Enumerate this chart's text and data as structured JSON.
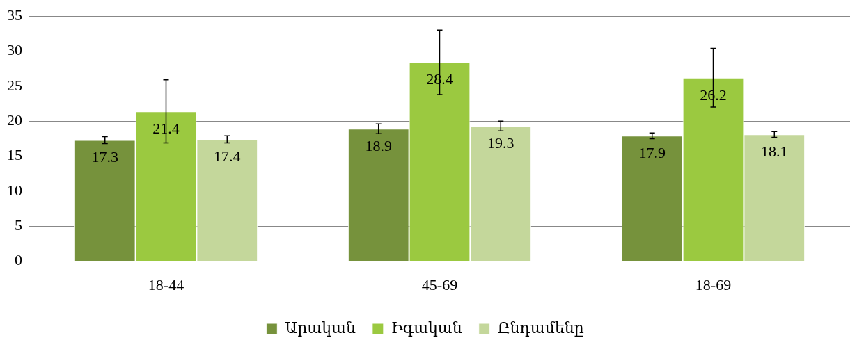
{
  "chart_data": {
    "type": "bar",
    "categories": [
      "18-44",
      "45-69",
      "18-69"
    ],
    "series": [
      {
        "name": "Արական",
        "color": "#76923c",
        "values": [
          17.3,
          18.9,
          17.9
        ],
        "errors": [
          0.5,
          0.7,
          0.4
        ]
      },
      {
        "name": "Իգական",
        "color": "#9bc940",
        "values": [
          21.4,
          28.4,
          26.2
        ],
        "errors": [
          4.5,
          4.6,
          4.2
        ]
      },
      {
        "name": "Ընդամենը",
        "color": "#c4d79b",
        "values": [
          17.4,
          19.3,
          18.1
        ],
        "errors": [
          0.5,
          0.7,
          0.4
        ]
      }
    ],
    "ylim": [
      0,
      35
    ],
    "yticks": [
      0,
      5,
      10,
      15,
      20,
      25,
      30,
      35
    ],
    "grid": "y",
    "legend": "bottom",
    "data_labels": true
  }
}
